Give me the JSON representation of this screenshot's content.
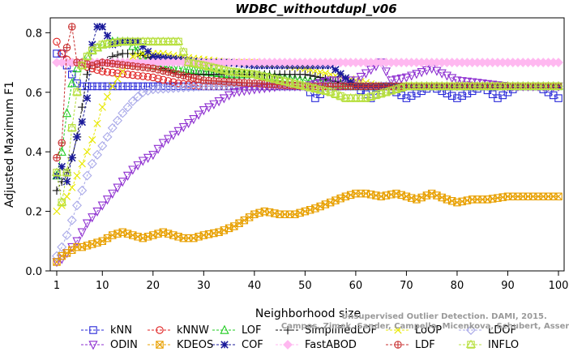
{
  "chart_data": {
    "type": "line",
    "title": "WDBC_withoutdupl_v06",
    "xlabel": "Neighborhood size",
    "ylabel": "Adjusted Maximum F1",
    "xlim": [
      1,
      100
    ],
    "ylim": [
      0.0,
      0.85
    ],
    "x_ticks": [
      1,
      10,
      20,
      30,
      40,
      50,
      60,
      70,
      80,
      90,
      100
    ],
    "y_ticks": [
      0.0,
      0.2,
      0.4,
      0.6,
      0.8
    ],
    "y_tick_labels": [
      "0.0",
      "0.2",
      "0.4",
      "0.6",
      "0.8"
    ],
    "grid": false,
    "legend_position": "bottom",
    "watermark": [
      "Unsupervised Outlier Detection. DAMI, 2015.",
      "Campos, Zimek, Sander, Campello, Micenkova, Schubert, Assent, Houle"
    ],
    "series": [
      {
        "name": "kNN",
        "color": "#2828d8",
        "marker": "square",
        "points": [
          [
            1,
            0.73
          ],
          [
            2,
            0.73
          ],
          [
            3,
            0.69
          ],
          [
            4,
            0.66
          ],
          [
            5,
            0.63
          ],
          [
            6,
            0.62
          ],
          [
            8,
            0.62
          ],
          [
            10,
            0.62
          ],
          [
            15,
            0.62
          ],
          [
            20,
            0.62
          ],
          [
            30,
            0.62
          ],
          [
            40,
            0.62
          ],
          [
            50,
            0.62
          ],
          [
            52,
            0.58
          ],
          [
            55,
            0.62
          ],
          [
            60,
            0.62
          ],
          [
            63,
            0.58
          ],
          [
            66,
            0.62
          ],
          [
            70,
            0.58
          ],
          [
            75,
            0.62
          ],
          [
            80,
            0.58
          ],
          [
            85,
            0.62
          ],
          [
            88,
            0.58
          ],
          [
            92,
            0.62
          ],
          [
            96,
            0.62
          ],
          [
            100,
            0.58
          ]
        ]
      },
      {
        "name": "kNNW",
        "color": "#e02020",
        "marker": "circle",
        "points": [
          [
            1,
            0.77
          ],
          [
            2,
            0.73
          ],
          [
            3,
            0.71
          ],
          [
            4,
            0.7
          ],
          [
            5,
            0.7
          ],
          [
            6,
            0.69
          ],
          [
            8,
            0.68
          ],
          [
            10,
            0.67
          ],
          [
            15,
            0.66
          ],
          [
            20,
            0.65
          ],
          [
            25,
            0.63
          ],
          [
            30,
            0.62
          ],
          [
            40,
            0.62
          ],
          [
            50,
            0.62
          ],
          [
            60,
            0.62
          ],
          [
            70,
            0.62
          ],
          [
            80,
            0.62
          ],
          [
            90,
            0.62
          ],
          [
            100,
            0.62
          ]
        ]
      },
      {
        "name": "LOF",
        "color": "#22cc22",
        "marker": "triangle-up",
        "points": [
          [
            1,
            0.32
          ],
          [
            2,
            0.4
          ],
          [
            3,
            0.53
          ],
          [
            4,
            0.63
          ],
          [
            5,
            0.68
          ],
          [
            6,
            0.7
          ],
          [
            7,
            0.72
          ],
          [
            8,
            0.74
          ],
          [
            10,
            0.76
          ],
          [
            12,
            0.77
          ],
          [
            15,
            0.77
          ],
          [
            17,
            0.74
          ],
          [
            20,
            0.69
          ],
          [
            25,
            0.68
          ],
          [
            30,
            0.67
          ],
          [
            35,
            0.66
          ],
          [
            40,
            0.66
          ],
          [
            50,
            0.64
          ],
          [
            55,
            0.63
          ],
          [
            60,
            0.62
          ],
          [
            70,
            0.62
          ],
          [
            80,
            0.62
          ],
          [
            90,
            0.62
          ],
          [
            100,
            0.62
          ]
        ]
      },
      {
        "name": "SimplifiedLOF",
        "color": "#111111",
        "marker": "plus",
        "points": [
          [
            1,
            0.27
          ],
          [
            2,
            0.3
          ],
          [
            3,
            0.33
          ],
          [
            4,
            0.38
          ],
          [
            5,
            0.45
          ],
          [
            6,
            0.55
          ],
          [
            7,
            0.66
          ],
          [
            8,
            0.7
          ],
          [
            10,
            0.69
          ],
          [
            12,
            0.72
          ],
          [
            14,
            0.73
          ],
          [
            17,
            0.73
          ],
          [
            20,
            0.71
          ],
          [
            22,
            0.68
          ],
          [
            25,
            0.66
          ],
          [
            30,
            0.66
          ],
          [
            35,
            0.66
          ],
          [
            40,
            0.66
          ],
          [
            45,
            0.66
          ],
          [
            50,
            0.66
          ],
          [
            53,
            0.65
          ],
          [
            55,
            0.64
          ],
          [
            60,
            0.62
          ],
          [
            70,
            0.62
          ],
          [
            80,
            0.62
          ],
          [
            90,
            0.62
          ],
          [
            100,
            0.62
          ]
        ]
      },
      {
        "name": "LoOP",
        "color": "#e8e800",
        "marker": "cross",
        "points": [
          [
            1,
            0.2
          ],
          [
            2,
            0.22
          ],
          [
            3,
            0.25
          ],
          [
            4,
            0.28
          ],
          [
            5,
            0.32
          ],
          [
            6,
            0.36
          ],
          [
            7,
            0.4
          ],
          [
            8,
            0.44
          ],
          [
            10,
            0.55
          ],
          [
            12,
            0.62
          ],
          [
            14,
            0.67
          ],
          [
            16,
            0.72
          ],
          [
            18,
            0.73
          ],
          [
            22,
            0.73
          ],
          [
            25,
            0.72
          ],
          [
            30,
            0.71
          ],
          [
            35,
            0.7
          ],
          [
            40,
            0.7
          ],
          [
            45,
            0.69
          ],
          [
            50,
            0.68
          ],
          [
            55,
            0.66
          ],
          [
            60,
            0.64
          ],
          [
            65,
            0.62
          ],
          [
            70,
            0.62
          ],
          [
            80,
            0.62
          ],
          [
            90,
            0.62
          ],
          [
            100,
            0.62
          ]
        ]
      },
      {
        "name": "LDOF",
        "color": "#a8a8e8",
        "marker": "diamond",
        "points": [
          [
            1,
            0.05
          ],
          [
            2,
            0.08
          ],
          [
            3,
            0.12
          ],
          [
            4,
            0.17
          ],
          [
            5,
            0.22
          ],
          [
            6,
            0.27
          ],
          [
            7,
            0.32
          ],
          [
            8,
            0.36
          ],
          [
            10,
            0.42
          ],
          [
            12,
            0.48
          ],
          [
            14,
            0.53
          ],
          [
            16,
            0.57
          ],
          [
            18,
            0.6
          ],
          [
            20,
            0.61
          ],
          [
            30,
            0.62
          ],
          [
            40,
            0.62
          ],
          [
            50,
            0.62
          ],
          [
            60,
            0.62
          ],
          [
            70,
            0.62
          ],
          [
            80,
            0.62
          ],
          [
            90,
            0.62
          ],
          [
            100,
            0.62
          ]
        ]
      },
      {
        "name": "ODIN",
        "color": "#8e2fd0",
        "marker": "triangle-down",
        "points": [
          [
            1,
            0.03
          ],
          [
            2,
            0.04
          ],
          [
            3,
            0.06
          ],
          [
            4,
            0.08
          ],
          [
            5,
            0.1
          ],
          [
            6,
            0.13
          ],
          [
            7,
            0.16
          ],
          [
            8,
            0.18
          ],
          [
            10,
            0.22
          ],
          [
            12,
            0.26
          ],
          [
            14,
            0.3
          ],
          [
            16,
            0.34
          ],
          [
            18,
            0.37
          ],
          [
            20,
            0.39
          ],
          [
            22,
            0.43
          ],
          [
            25,
            0.47
          ],
          [
            28,
            0.51
          ],
          [
            30,
            0.54
          ],
          [
            33,
            0.57
          ],
          [
            36,
            0.6
          ],
          [
            40,
            0.61
          ],
          [
            45,
            0.62
          ],
          [
            50,
            0.62
          ],
          [
            55,
            0.64
          ],
          [
            60,
            0.64
          ],
          [
            65,
            0.7
          ],
          [
            67,
            0.64
          ],
          [
            70,
            0.65
          ],
          [
            75,
            0.68
          ],
          [
            80,
            0.64
          ],
          [
            85,
            0.63
          ],
          [
            90,
            0.62
          ],
          [
            95,
            0.62
          ],
          [
            100,
            0.62
          ]
        ]
      },
      {
        "name": "KDEOS",
        "color": "#e8a000",
        "marker": "square-x",
        "points": [
          [
            1,
            0.03
          ],
          [
            2,
            0.05
          ],
          [
            3,
            0.06
          ],
          [
            4,
            0.07
          ],
          [
            5,
            0.08
          ],
          [
            6,
            0.08
          ],
          [
            8,
            0.09
          ],
          [
            10,
            0.1
          ],
          [
            12,
            0.12
          ],
          [
            14,
            0.13
          ],
          [
            16,
            0.12
          ],
          [
            18,
            0.11
          ],
          [
            20,
            0.12
          ],
          [
            22,
            0.13
          ],
          [
            24,
            0.12
          ],
          [
            26,
            0.11
          ],
          [
            28,
            0.11
          ],
          [
            30,
            0.12
          ],
          [
            33,
            0.13
          ],
          [
            36,
            0.15
          ],
          [
            40,
            0.19
          ],
          [
            42,
            0.2
          ],
          [
            45,
            0.19
          ],
          [
            48,
            0.19
          ],
          [
            50,
            0.2
          ],
          [
            52,
            0.21
          ],
          [
            55,
            0.23
          ],
          [
            58,
            0.25
          ],
          [
            60,
            0.26
          ],
          [
            62,
            0.26
          ],
          [
            65,
            0.25
          ],
          [
            68,
            0.26
          ],
          [
            70,
            0.25
          ],
          [
            72,
            0.24
          ],
          [
            75,
            0.26
          ],
          [
            78,
            0.24
          ],
          [
            80,
            0.23
          ],
          [
            83,
            0.24
          ],
          [
            86,
            0.24
          ],
          [
            90,
            0.25
          ],
          [
            93,
            0.25
          ],
          [
            96,
            0.25
          ],
          [
            100,
            0.25
          ]
        ]
      },
      {
        "name": "COF",
        "color": "#1a1a9a",
        "marker": "asterisk",
        "points": [
          [
            1,
            0.32
          ],
          [
            2,
            0.35
          ],
          [
            3,
            0.3
          ],
          [
            4,
            0.38
          ],
          [
            5,
            0.45
          ],
          [
            6,
            0.5
          ],
          [
            7,
            0.58
          ],
          [
            8,
            0.76
          ],
          [
            9,
            0.82
          ],
          [
            10,
            0.82
          ],
          [
            12,
            0.76
          ],
          [
            14,
            0.77
          ],
          [
            17,
            0.77
          ],
          [
            20,
            0.72
          ],
          [
            25,
            0.71
          ],
          [
            30,
            0.7
          ],
          [
            35,
            0.7
          ],
          [
            40,
            0.69
          ],
          [
            45,
            0.69
          ],
          [
            50,
            0.69
          ],
          [
            55,
            0.69
          ],
          [
            60,
            0.62
          ],
          [
            70,
            0.62
          ],
          [
            80,
            0.62
          ],
          [
            90,
            0.62
          ],
          [
            100,
            0.62
          ]
        ]
      },
      {
        "name": "FastABOD",
        "color": "#ffb8f0",
        "marker": "diamond-filled",
        "points": [
          [
            1,
            0.7
          ],
          [
            5,
            0.7
          ],
          [
            10,
            0.7
          ],
          [
            20,
            0.7
          ],
          [
            30,
            0.7
          ],
          [
            40,
            0.7
          ],
          [
            50,
            0.7
          ],
          [
            60,
            0.7
          ],
          [
            70,
            0.7
          ],
          [
            80,
            0.7
          ],
          [
            90,
            0.7
          ],
          [
            100,
            0.7
          ]
        ]
      },
      {
        "name": "LDF",
        "color": "#c83030",
        "marker": "circle-plus",
        "points": [
          [
            1,
            0.38
          ],
          [
            2,
            0.43
          ],
          [
            3,
            0.75
          ],
          [
            4,
            0.82
          ],
          [
            5,
            0.7
          ],
          [
            6,
            0.7
          ],
          [
            8,
            0.69
          ],
          [
            10,
            0.7
          ],
          [
            15,
            0.69
          ],
          [
            20,
            0.68
          ],
          [
            25,
            0.66
          ],
          [
            30,
            0.64
          ],
          [
            40,
            0.63
          ],
          [
            50,
            0.62
          ],
          [
            60,
            0.62
          ],
          [
            70,
            0.62
          ],
          [
            80,
            0.62
          ],
          [
            90,
            0.62
          ],
          [
            100,
            0.62
          ]
        ]
      },
      {
        "name": "INFLO",
        "color": "#b8e040",
        "marker": "star",
        "points": [
          [
            1,
            0.33
          ],
          [
            2,
            0.23
          ],
          [
            3,
            0.33
          ],
          [
            4,
            0.48
          ],
          [
            5,
            0.6
          ],
          [
            6,
            0.69
          ],
          [
            7,
            0.72
          ],
          [
            8,
            0.74
          ],
          [
            10,
            0.76
          ],
          [
            14,
            0.77
          ],
          [
            18,
            0.77
          ],
          [
            22,
            0.77
          ],
          [
            25,
            0.77
          ],
          [
            27,
            0.7
          ],
          [
            30,
            0.69
          ],
          [
            35,
            0.67
          ],
          [
            40,
            0.66
          ],
          [
            45,
            0.64
          ],
          [
            50,
            0.62
          ],
          [
            55,
            0.6
          ],
          [
            58,
            0.58
          ],
          [
            62,
            0.58
          ],
          [
            66,
            0.6
          ],
          [
            70,
            0.62
          ],
          [
            80,
            0.62
          ],
          [
            90,
            0.62
          ],
          [
            100,
            0.62
          ]
        ]
      }
    ]
  }
}
